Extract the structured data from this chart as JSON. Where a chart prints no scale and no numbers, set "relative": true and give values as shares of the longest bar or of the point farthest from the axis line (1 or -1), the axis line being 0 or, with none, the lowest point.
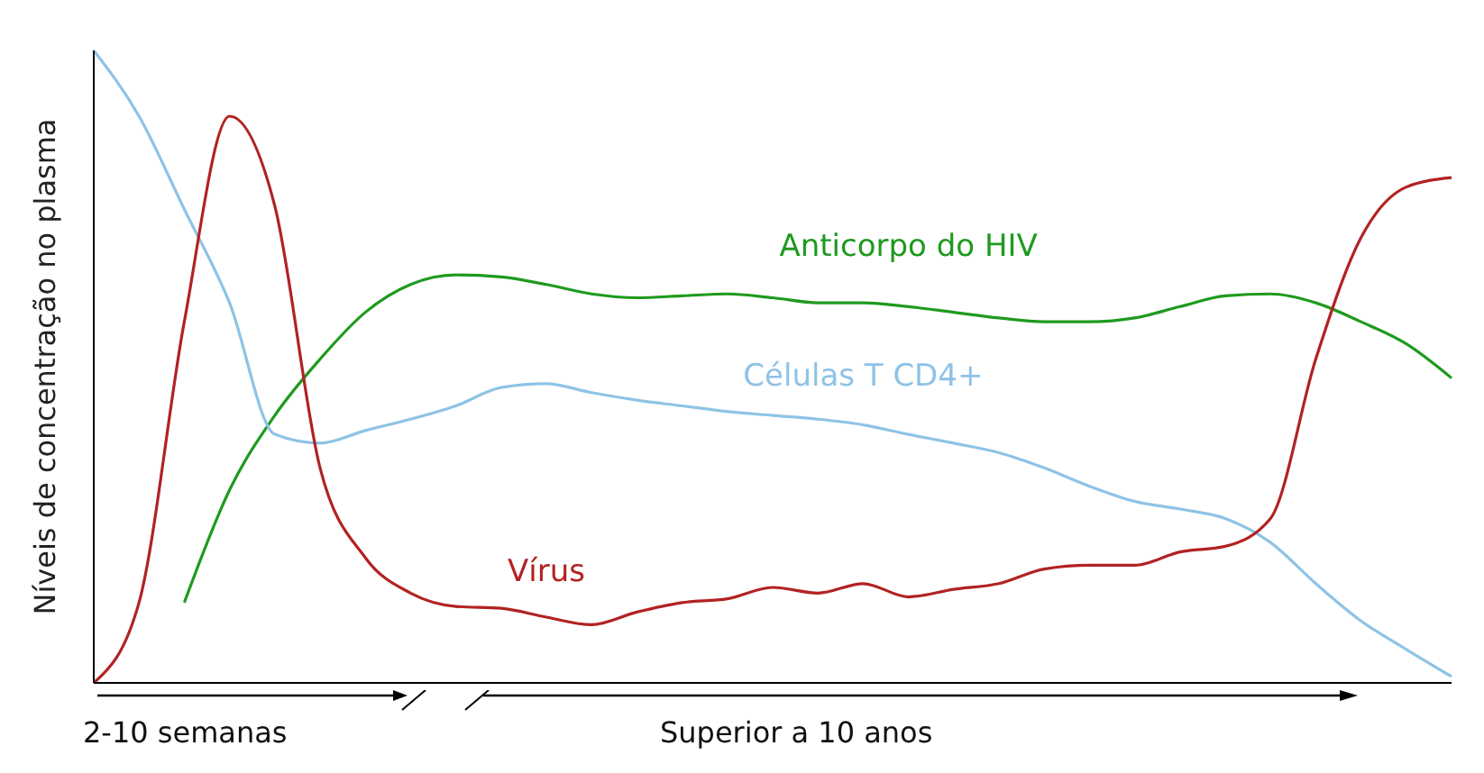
{
  "chart_data": {
    "type": "line",
    "relative": true,
    "ylabel": "Níveis de concentração no plasma",
    "annotations": [
      "2-10 semanas",
      "Superior a 10 anos"
    ],
    "legend": false,
    "grid": false,
    "marker": "none",
    "categories": [
      null,
      null,
      null,
      null,
      null,
      null,
      null,
      null,
      null,
      null,
      null,
      null,
      null,
      null,
      null,
      null,
      null,
      null,
      null,
      null,
      null,
      null,
      null,
      null,
      null,
      null,
      null,
      null,
      null,
      null,
      null
    ],
    "series": [
      {
        "name": "Anticorpo do HIV",
        "color": "#1e9a1e",
        "values": [
          null,
          null,
          0.127,
          0.305,
          0.423,
          0.512,
          0.586,
          0.63,
          0.645,
          0.642,
          0.63,
          0.615,
          0.609,
          0.612,
          0.615,
          0.609,
          0.601,
          0.601,
          0.595,
          0.586,
          0.577,
          0.571,
          0.571,
          0.577,
          0.595,
          0.612,
          0.615,
          0.601,
          0.571,
          0.536,
          0.482
        ]
      },
      {
        "name": "Células T CD4+",
        "color": "#8ec3e6",
        "values": [
          1.0,
          0.896,
          0.749,
          0.601,
          0.393,
          0.379,
          0.399,
          0.417,
          0.438,
          0.467,
          0.473,
          0.459,
          0.447,
          0.438,
          0.429,
          0.423,
          0.417,
          0.408,
          0.393,
          0.379,
          0.364,
          0.34,
          0.311,
          0.287,
          0.275,
          0.26,
          0.222,
          0.157,
          0.098,
          0.053,
          0.01
        ]
      },
      {
        "name": "Vírus",
        "color": "#b22222",
        "values": [
          0,
          0.127,
          0.571,
          0.896,
          0.754,
          0.34,
          0.198,
          0.142,
          0.121,
          0.118,
          0.104,
          0.092,
          0.112,
          0.127,
          0.133,
          0.151,
          0.142,
          0.157,
          0.136,
          0.148,
          0.157,
          0.18,
          0.186,
          0.186,
          0.207,
          0.216,
          0.26,
          0.512,
          0.704,
          0.784,
          0.799
        ]
      }
    ]
  }
}
